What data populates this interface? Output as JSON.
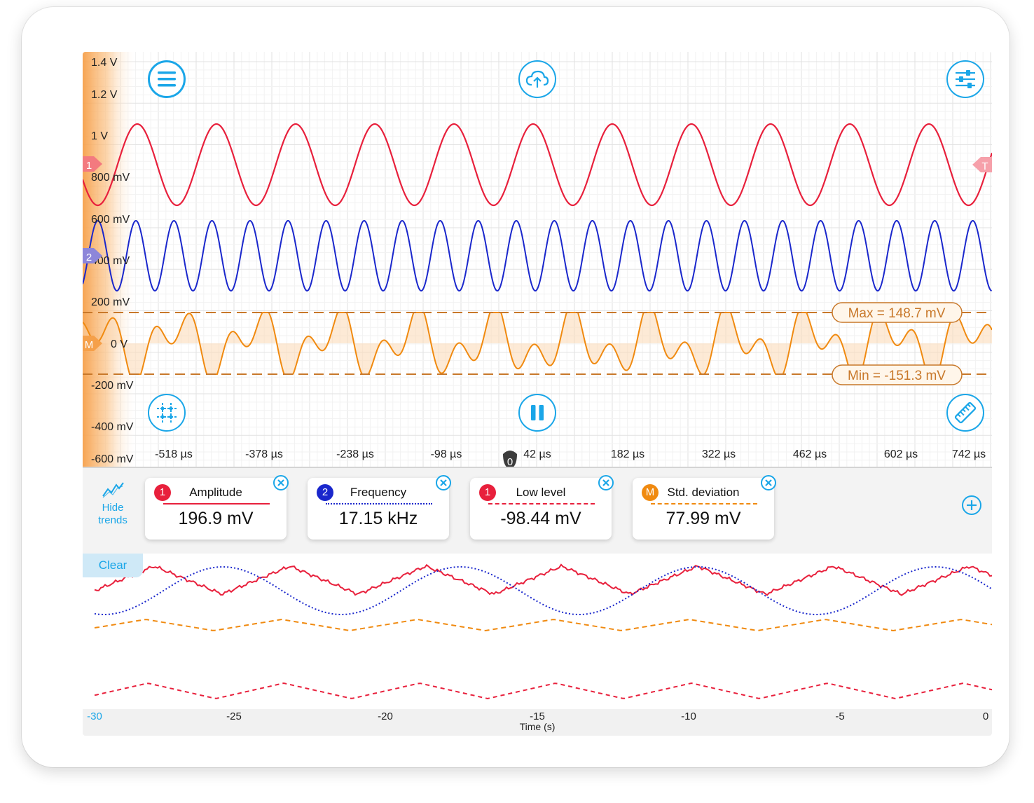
{
  "scope": {
    "y_labels": [
      "1.4 V",
      "1.2 V",
      "1 V",
      "800 mV",
      "600 mV",
      "400 mV",
      "200 mV",
      "0 V",
      "-200 mV",
      "-400 mV",
      "-600 mV"
    ],
    "x_labels": [
      "-518 µs",
      "-378 µs",
      "-238 µs",
      "-98 µs",
      "42 µs",
      "182 µs",
      "322 µs",
      "462 µs",
      "602 µs",
      "742 µs"
    ],
    "trigger_marker": "0",
    "channel_markers": [
      "1",
      "2",
      "M"
    ],
    "trigger_label": "T",
    "max_label": "Max = 148.7 mV",
    "min_label": "Min = -151.3 mV",
    "buttons": [
      "menu-icon",
      "cloud-upload-icon",
      "settings-sliders-icon",
      "grid-icon",
      "pause-icon",
      "ruler-icon"
    ]
  },
  "colors": {
    "ch1": "#e8203c",
    "ch2": "#1a27cc",
    "math": "#f08a10",
    "accent": "#1aa6e8"
  },
  "measurements": {
    "hide_trends_label": "Hide trends",
    "cards": [
      {
        "badge": "1",
        "name": "Amplitude",
        "value": "196.9 mV",
        "color": "#e8203c",
        "line": "solid"
      },
      {
        "badge": "2",
        "name": "Frequency",
        "value": "17.15 kHz",
        "color": "#1a27cc",
        "line": "dotted"
      },
      {
        "badge": "1",
        "name": "Low level",
        "value": "-98.44 mV",
        "color": "#e8203c",
        "line": "dashed"
      },
      {
        "badge": "M",
        "name": "Std. deviation",
        "value": "77.99 mV",
        "color": "#f08a10",
        "line": "dashed"
      }
    ]
  },
  "trend": {
    "clear_label": "Clear",
    "x_labels": [
      "-30",
      "-25",
      "-20",
      "-15",
      "-10",
      "-5",
      "0"
    ],
    "x_title": "Time (s)"
  }
}
